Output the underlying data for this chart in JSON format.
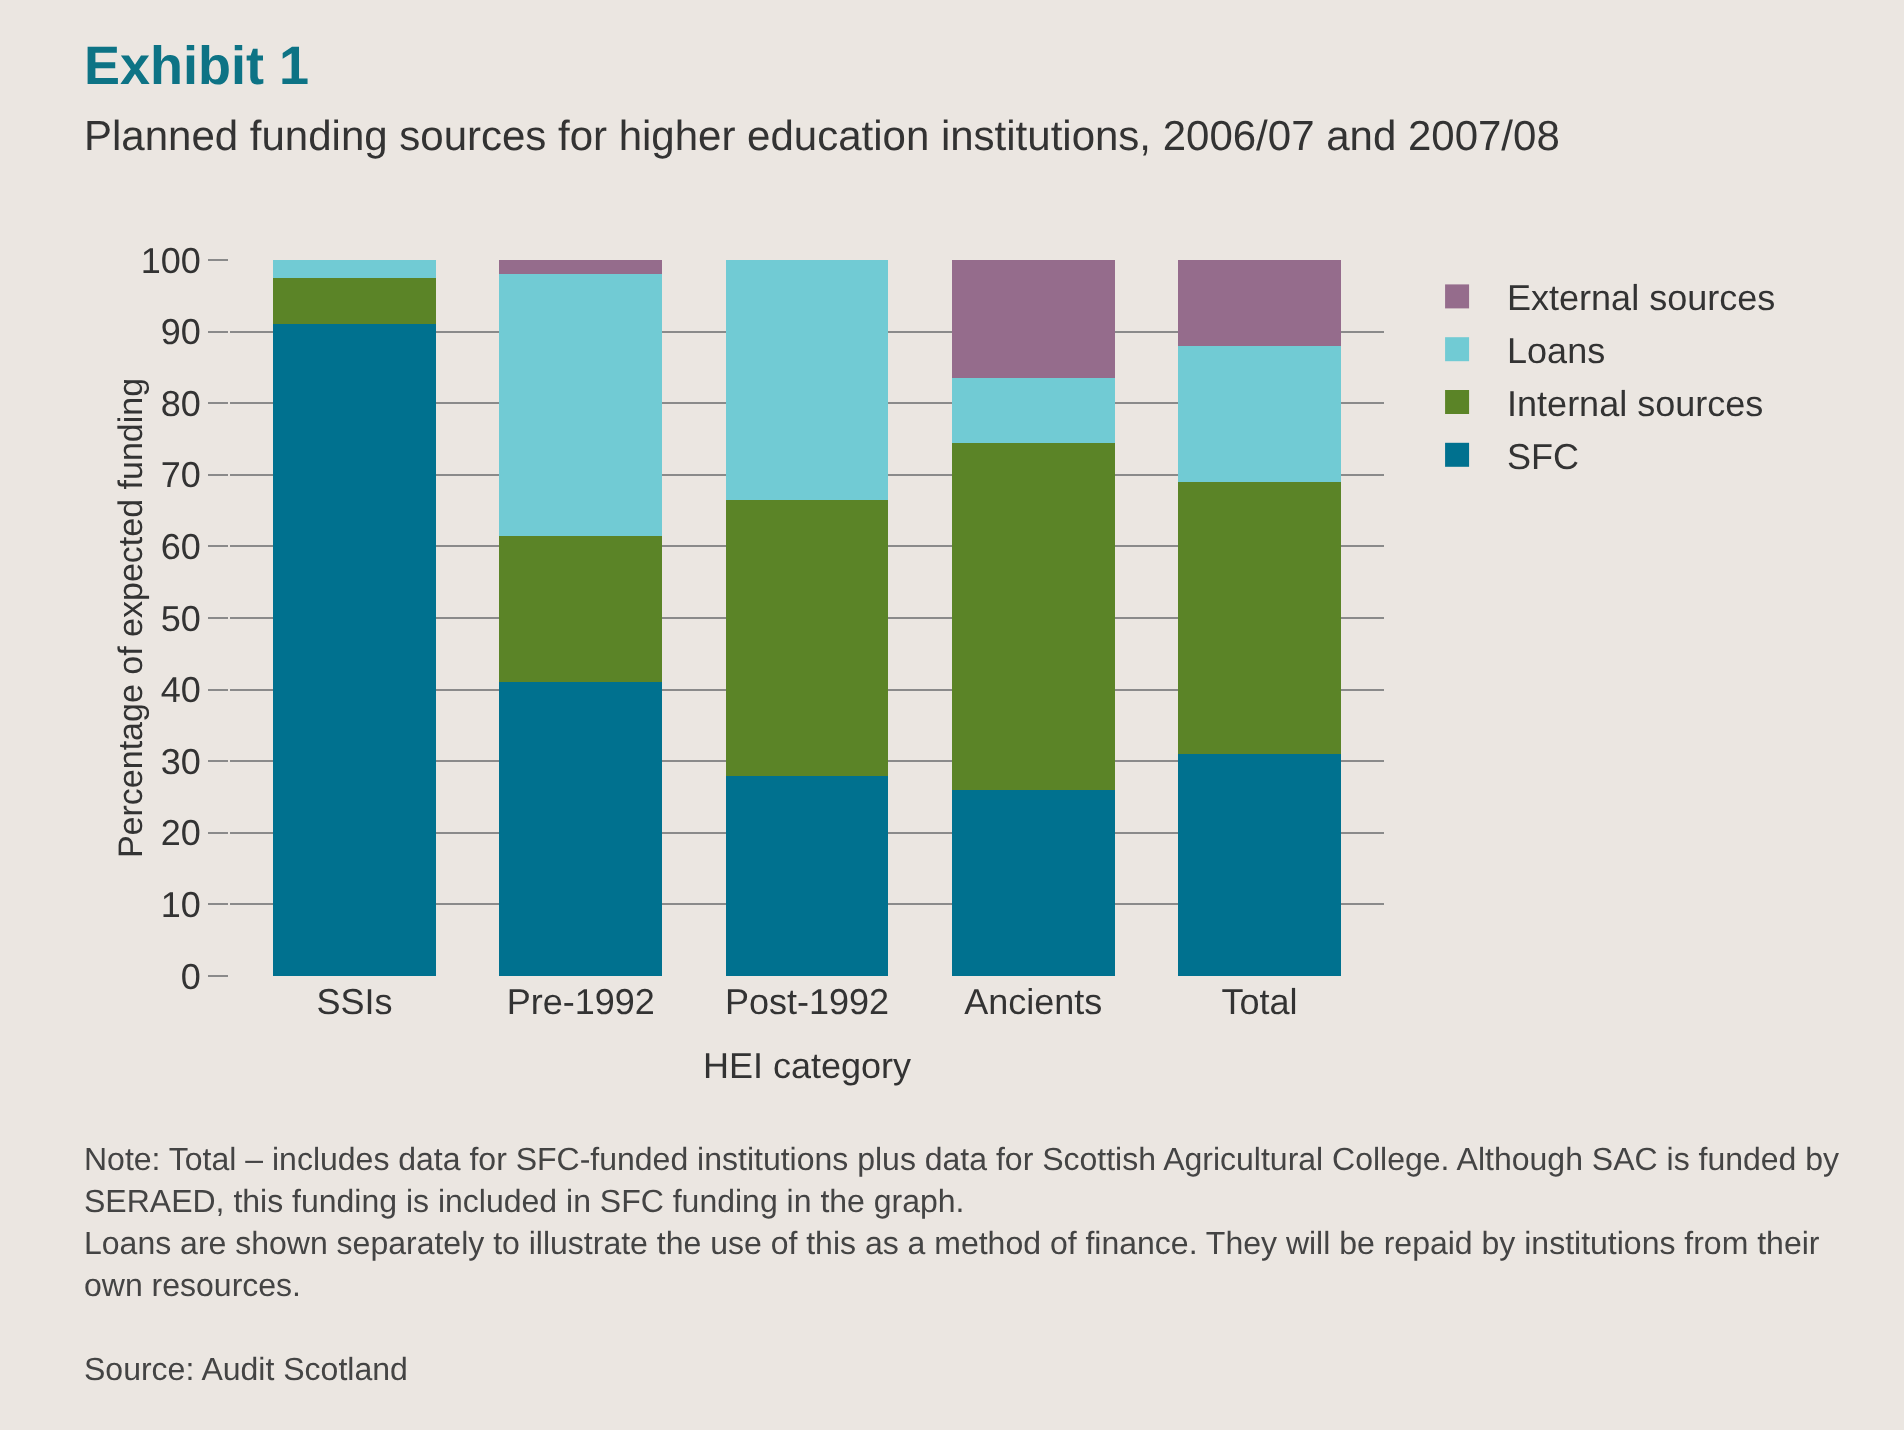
{
  "chart_data": {
    "type": "bar",
    "title": "Exhibit 1",
    "subtitle": "Planned funding sources for higher education institutions, 2006/07 and 2007/08",
    "xlabel": "HEI category",
    "ylabel": "Percentage of expected funding",
    "categories": [
      "SSIs",
      "Pre-1992",
      "Post-1992",
      "Ancients",
      "Total"
    ],
    "series": [
      {
        "name": "SFC",
        "color": "#00718f",
        "values": [
          91,
          41,
          28,
          26,
          31
        ]
      },
      {
        "name": "Internal sources",
        "color": "#5b8427",
        "values": [
          6.5,
          20.5,
          38.5,
          48.5,
          38
        ]
      },
      {
        "name": "Loans",
        "color": "#71cbd4",
        "values": [
          2.5,
          36.5,
          33.5,
          9,
          19
        ]
      },
      {
        "name": "External sources",
        "color": "#956c8c",
        "values": [
          0,
          2,
          0,
          16.5,
          12
        ]
      }
    ],
    "stacked": true,
    "ylim": [
      0,
      100
    ],
    "yticks": [
      0,
      10,
      20,
      30,
      40,
      50,
      60,
      70,
      80,
      90,
      100
    ],
    "grid": "y",
    "legend": "right",
    "annotations": [
      "Note: Total – includes data for SFC-funded institutions plus data for Scottish Agricultural College. Although SAC is funded by SERAED, this funding is included in SFC funding in the graph.",
      "Loans are shown separately to illustrate the use of this as a method of finance. They will be repaid by institutions from their own resources.",
      "Source: Audit Scotland"
    ]
  }
}
